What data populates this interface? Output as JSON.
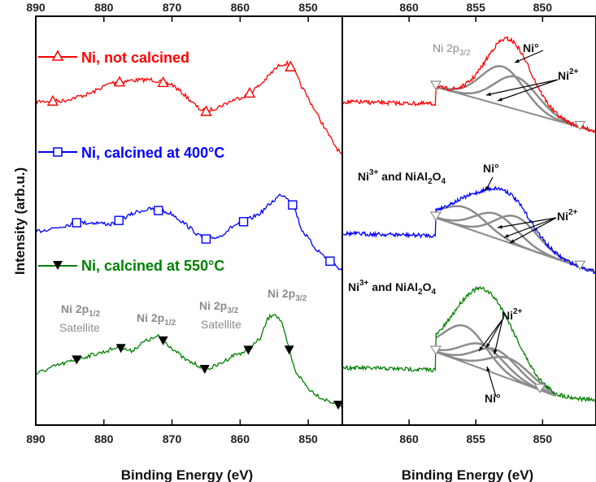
{
  "chart_data": [
    {
      "type": "line",
      "xlabel": "Binding Energy (eV)",
      "ylabel": "Intensity (arb.u.)",
      "xlim": [
        890,
        845
      ],
      "x_reversed": true,
      "xticks": [
        890,
        880,
        870,
        860,
        850
      ],
      "grid": false,
      "legend_position": "left",
      "series": [
        {
          "name": "Ni, not calcined",
          "color": "#ff0000",
          "marker": "open-triangle-up",
          "points": [
            [
              890,
              125
            ],
            [
              886,
              124
            ],
            [
              882,
              115
            ],
            [
              879,
              102
            ],
            [
              876,
              99
            ],
            [
              873,
              98
            ],
            [
              870,
              104
            ],
            [
              868,
              118
            ],
            [
              866,
              134
            ],
            [
              865,
              137
            ],
            [
              863,
              131
            ],
            [
              861,
              123
            ],
            [
              859,
              117
            ],
            [
              857,
              104
            ],
            [
              855,
              86
            ],
            [
              854,
              79
            ],
            [
              853,
              78
            ],
            [
              852,
              88
            ],
            [
              851,
              106
            ],
            [
              849,
              136
            ],
            [
              847,
              166
            ],
            [
              846,
              180
            ],
            [
              845,
              192
            ]
          ],
          "markers_x": [
            887.5,
            877.7,
            871.3,
            865.0,
            858.6,
            852.6
          ]
        },
        {
          "name": "Ni, calcined at 400°C",
          "color": "#0000ff",
          "marker": "open-square",
          "points": [
            [
              890,
              285
            ],
            [
              887,
              280
            ],
            [
              884,
              274
            ],
            [
              881,
              274
            ],
            [
              879,
              276
            ],
            [
              877,
              268
            ],
            [
              875,
              260
            ],
            [
              873,
              257
            ],
            [
              870,
              263
            ],
            [
              868,
              276
            ],
            [
              866,
              290
            ],
            [
              865,
              294
            ],
            [
              863,
              291
            ],
            [
              861,
              278
            ],
            [
              859,
              271
            ],
            [
              857,
              262
            ],
            [
              855,
              246
            ],
            [
              854,
              239
            ],
            [
              853,
              243
            ],
            [
              852,
              256
            ],
            [
              851,
              282
            ],
            [
              849,
              305
            ],
            [
              847,
              320
            ],
            [
              845,
              333
            ]
          ],
          "markers_x": [
            884.0,
            877.8,
            872.0,
            865.0,
            859.5,
            852.3,
            846.8
          ]
        },
        {
          "name": "Ni, calcined at 550°C",
          "color": "#008000",
          "marker": "filled-triangle-down",
          "points": [
            [
              890,
              460
            ],
            [
              887,
              450
            ],
            [
              885,
              445
            ],
            [
              882,
              437
            ],
            [
              880,
              433
            ],
            [
              878,
              427
            ],
            [
              876,
              432
            ],
            [
              874,
              420
            ],
            [
              872,
              414
            ],
            [
              870,
              428
            ],
            [
              868,
              443
            ],
            [
              866,
              450
            ],
            [
              865,
              455
            ],
            [
              863,
              448
            ],
            [
              861,
              437
            ],
            [
              859,
              432
            ],
            [
              857,
              416
            ],
            [
              856,
              393
            ],
            [
              855,
              385
            ],
            [
              854,
              395
            ],
            [
              853,
              424
            ],
            [
              852,
              455
            ],
            [
              850,
              478
            ],
            [
              848,
              490
            ],
            [
              845,
              500
            ]
          ],
          "markers_x": [
            884.0,
            877.5,
            871.3,
            865.2,
            858.8,
            852.8,
            845.6
          ]
        }
      ],
      "annotations": [
        {
          "text": "Ni 2p",
          "sub": "1/2",
          "line2": "Satellite"
        },
        {
          "text": "Ni 2p",
          "sub": "1/2"
        },
        {
          "text": "Ni 2p",
          "sub": "3/2",
          "line2": "Satellite"
        },
        {
          "text": "Ni 2p",
          "sub": "3/2"
        }
      ]
    },
    {
      "type": "line",
      "xlabel": "Binding Energy (eV)",
      "xlim": [
        865,
        846
      ],
      "x_reversed": true,
      "xticks": [
        860,
        855,
        850
      ],
      "grid": false,
      "panels": [
        {
          "data_color": "#ff0000",
          "labels": [
            "Ni 2p3/2",
            "Ni°",
            "Ni2+"
          ]
        },
        {
          "data_color": "#0000ff",
          "labels": [
            "Ni3+ and NiAl2O4",
            "Ni°",
            "Ni2+"
          ]
        },
        {
          "data_color": "#008000",
          "labels": [
            "Ni3+ and NiAl2O4",
            "Ni2+",
            "Ni°"
          ]
        }
      ]
    }
  ],
  "text": {
    "left_xlabel": "Binding Energy (eV)",
    "right_xlabel": "Binding Energy (eV)",
    "ylabel": "Intensity (arb.u.)",
    "legend_red": "Ni, not calcined",
    "legend_blue": "Ni, calcined at 400°C",
    "legend_green": "Ni, calcined at 550°C",
    "ni2p": "Ni 2p",
    "sub_half": "1/2",
    "sub_threehalf": "3/2",
    "satellite": "Satellite",
    "ni0": "Ni°",
    "ni2": "Ni",
    "sup2": "2+",
    "sup3": "3+",
    "and_nial": " and NiAl",
    "sub2": "2",
    "o": "O",
    "sub4": "4"
  },
  "ticks_left": [
    "890",
    "880",
    "870",
    "860",
    "850"
  ],
  "ticks_right": [
    "860",
    "855",
    "850"
  ]
}
